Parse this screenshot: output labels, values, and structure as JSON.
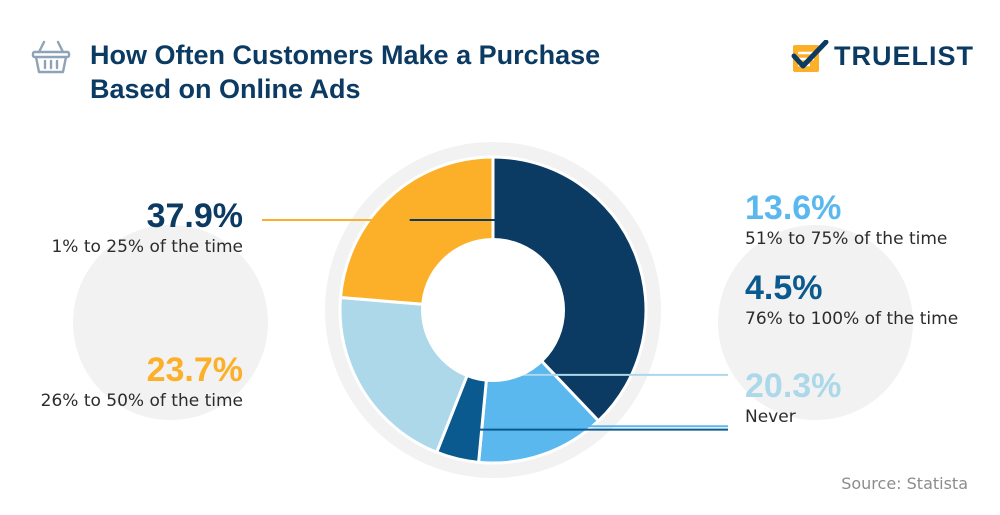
{
  "header": {
    "title_line1": "How Often Customers Make a Purchase",
    "title_line2": "Based on Online Ads",
    "brand": "TRUELIST"
  },
  "source": "Source: Statista",
  "chart_data": {
    "type": "pie",
    "style": "donut",
    "slices": [
      {
        "label": "1% to 25% of the time",
        "display": "37.9%",
        "value": 37.9,
        "color": "#0b3a63",
        "label_color": "#0b3a63",
        "side": "left"
      },
      {
        "label": "51% to 75% of the time",
        "display": "13.6%",
        "value": 13.6,
        "color": "#5bb8ef",
        "label_color": "#5bb8ef",
        "side": "right"
      },
      {
        "label": "76% to 100% of the time",
        "display": "4.5%",
        "value": 4.5,
        "color": "#0a5a8f",
        "label_color": "#0a5a8f",
        "side": "right"
      },
      {
        "label": "Never",
        "display": "20.3%",
        "value": 20.3,
        "color": "#acd8ea",
        "label_color": "#acd8ea",
        "side": "right"
      },
      {
        "label": "26% to 50% of the time",
        "display": "23.7%",
        "value": 23.7,
        "color": "#fcb02a",
        "label_color": "#fcb02a",
        "side": "left"
      }
    ],
    "start_direction": "top",
    "legend": "none"
  }
}
